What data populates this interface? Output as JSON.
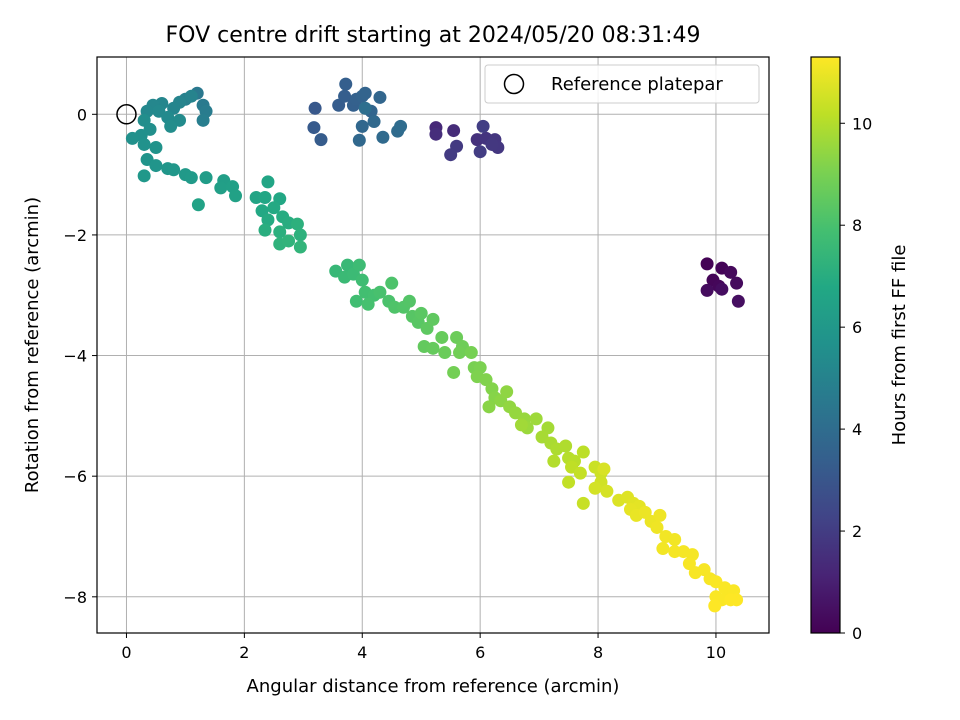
{
  "chart_data": {
    "type": "scatter",
    "title": "FOV centre drift starting at 2024/05/20 08:31:49",
    "xlabel": "Angular distance from reference (arcmin)",
    "ylabel": "Rotation from reference (arcmin)",
    "xlim": [
      -0.5,
      10.9
    ],
    "ylim": [
      -8.6,
      0.95
    ],
    "xticks": [
      0,
      2,
      4,
      6,
      8,
      10
    ],
    "yticks": [
      0,
      -2,
      -4,
      -6,
      -8
    ],
    "grid": true,
    "legend": {
      "placement": "upper right",
      "entries": [
        "Reference platepar"
      ]
    },
    "reference_point": {
      "x": 0,
      "y": 0
    },
    "colorbar": {
      "label": "Hours from first FF file",
      "cmap": "viridis",
      "range": [
        0,
        11.3
      ],
      "ticks": [
        0,
        2,
        4,
        6,
        8,
        10
      ]
    },
    "points": [
      [
        9.85,
        -2.48,
        0.05
      ],
      [
        10.1,
        -2.55,
        0.1
      ],
      [
        9.95,
        -2.75,
        0.15
      ],
      [
        10.05,
        -2.85,
        0.2
      ],
      [
        10.25,
        -2.62,
        0.25
      ],
      [
        10.35,
        -2.8,
        0.3
      ],
      [
        9.85,
        -2.92,
        0.35
      ],
      [
        10.1,
        -2.9,
        0.4
      ],
      [
        10.38,
        -3.1,
        0.45
      ],
      [
        5.25,
        -0.22,
        1.3
      ],
      [
        5.55,
        -0.27,
        1.4
      ],
      [
        5.25,
        -0.33,
        1.5
      ],
      [
        5.95,
        -0.42,
        1.6
      ],
      [
        6.1,
        -0.4,
        1.7
      ],
      [
        6.25,
        -0.42,
        1.75
      ],
      [
        6.3,
        -0.55,
        1.8
      ],
      [
        6.2,
        -0.5,
        1.85
      ],
      [
        5.6,
        -0.53,
        1.9
      ],
      [
        5.5,
        -0.67,
        1.95
      ],
      [
        6.0,
        -0.62,
        2.0
      ],
      [
        6.05,
        -0.2,
        2.05
      ],
      [
        3.2,
        0.1,
        3.1
      ],
      [
        3.18,
        -0.22,
        3.2
      ],
      [
        3.3,
        -0.42,
        3.25
      ],
      [
        3.6,
        0.15,
        3.3
      ],
      [
        3.7,
        0.3,
        3.35
      ],
      [
        3.72,
        0.5,
        3.4
      ],
      [
        3.85,
        0.15,
        3.45
      ],
      [
        3.9,
        0.25,
        3.5
      ],
      [
        4.0,
        0.3,
        3.55
      ],
      [
        4.05,
        0.35,
        3.6
      ],
      [
        4.15,
        0.05,
        3.65
      ],
      [
        4.3,
        0.28,
        3.7
      ],
      [
        4.0,
        -0.2,
        3.75
      ],
      [
        3.95,
        -0.43,
        3.8
      ],
      [
        4.2,
        -0.12,
        3.85
      ],
      [
        4.35,
        -0.38,
        3.9
      ],
      [
        4.6,
        -0.28,
        3.95
      ],
      [
        4.65,
        -0.2,
        4.0
      ],
      [
        4.05,
        0.1,
        4.1
      ],
      [
        1.2,
        0.35,
        4.5
      ],
      [
        1.3,
        0.15,
        4.6
      ],
      [
        1.35,
        0.05,
        4.7
      ],
      [
        1.3,
        -0.1,
        4.8
      ],
      [
        1.0,
        0.25,
        4.9
      ],
      [
        1.1,
        0.3,
        5.0
      ],
      [
        0.9,
        0.2,
        5.05
      ],
      [
        0.8,
        0.1,
        5.1
      ],
      [
        0.6,
        0.18,
        5.15
      ],
      [
        0.45,
        0.15,
        5.2
      ],
      [
        0.35,
        0.05,
        5.25
      ],
      [
        0.55,
        0.05,
        5.3
      ],
      [
        0.7,
        -0.05,
        5.35
      ],
      [
        0.9,
        -0.1,
        5.4
      ],
      [
        0.75,
        -0.2,
        5.45
      ],
      [
        0.3,
        -0.1,
        5.5
      ],
      [
        0.4,
        -0.25,
        5.55
      ],
      [
        0.25,
        -0.35,
        5.6
      ],
      [
        0.1,
        -0.4,
        5.65
      ],
      [
        0.3,
        -0.5,
        5.7
      ],
      [
        0.5,
        -0.55,
        5.75
      ],
      [
        0.35,
        -0.75,
        5.8
      ],
      [
        0.5,
        -0.85,
        5.85
      ],
      [
        0.7,
        -0.9,
        5.9
      ],
      [
        0.8,
        -0.92,
        5.95
      ],
      [
        0.3,
        -1.02,
        6.0
      ],
      [
        1.0,
        -1.0,
        6.05
      ],
      [
        1.1,
        -1.05,
        6.1
      ],
      [
        1.35,
        -1.05,
        6.2
      ],
      [
        1.65,
        -1.1,
        6.3
      ],
      [
        1.6,
        -1.22,
        6.35
      ],
      [
        1.8,
        -1.2,
        6.4
      ],
      [
        1.85,
        -1.35,
        6.45
      ],
      [
        1.22,
        -1.5,
        6.5
      ],
      [
        2.2,
        -1.38,
        6.6
      ],
      [
        2.4,
        -1.12,
        6.65
      ],
      [
        2.35,
        -1.38,
        6.7
      ],
      [
        2.6,
        -1.4,
        6.75
      ],
      [
        2.3,
        -1.6,
        6.8
      ],
      [
        2.5,
        -1.55,
        6.85
      ],
      [
        2.4,
        -1.75,
        6.9
      ],
      [
        2.65,
        -1.7,
        6.95
      ],
      [
        2.75,
        -1.8,
        7.0
      ],
      [
        2.35,
        -1.92,
        7.05
      ],
      [
        2.6,
        -1.95,
        7.1
      ],
      [
        2.9,
        -1.82,
        7.15
      ],
      [
        2.95,
        -2.0,
        7.2
      ],
      [
        2.6,
        -2.15,
        7.25
      ],
      [
        2.75,
        -2.1,
        7.3
      ],
      [
        2.95,
        -2.2,
        7.35
      ],
      [
        3.55,
        -2.6,
        7.5
      ],
      [
        3.75,
        -2.5,
        7.55
      ],
      [
        3.7,
        -2.7,
        7.6
      ],
      [
        3.85,
        -2.65,
        7.65
      ],
      [
        3.95,
        -2.5,
        7.7
      ],
      [
        4.0,
        -2.75,
        7.75
      ],
      [
        3.9,
        -3.1,
        7.8
      ],
      [
        4.05,
        -2.95,
        7.85
      ],
      [
        4.2,
        -3.0,
        7.9
      ],
      [
        4.1,
        -3.15,
        7.95
      ],
      [
        4.3,
        -2.95,
        8.0
      ],
      [
        4.45,
        -3.1,
        8.05
      ],
      [
        4.5,
        -2.8,
        8.1
      ],
      [
        4.55,
        -3.2,
        8.15
      ],
      [
        4.7,
        -3.2,
        8.2
      ],
      [
        4.8,
        -3.1,
        8.25
      ],
      [
        4.85,
        -3.35,
        8.3
      ],
      [
        4.95,
        -3.45,
        8.35
      ],
      [
        5.0,
        -3.3,
        8.4
      ],
      [
        5.1,
        -3.55,
        8.45
      ],
      [
        5.2,
        -3.4,
        8.5
      ],
      [
        5.05,
        -3.85,
        8.55
      ],
      [
        5.2,
        -3.88,
        8.6
      ],
      [
        5.35,
        -3.7,
        8.65
      ],
      [
        5.4,
        -3.95,
        8.7
      ],
      [
        5.6,
        -3.7,
        8.75
      ],
      [
        5.7,
        -3.85,
        8.8
      ],
      [
        5.65,
        -3.95,
        8.85
      ],
      [
        5.55,
        -4.28,
        8.9
      ],
      [
        5.85,
        -3.95,
        8.95
      ],
      [
        5.9,
        -4.2,
        9.0
      ],
      [
        6.0,
        -4.2,
        9.05
      ],
      [
        5.95,
        -4.35,
        9.1
      ],
      [
        6.1,
        -4.4,
        9.15
      ],
      [
        6.2,
        -4.55,
        9.2
      ],
      [
        6.25,
        -4.7,
        9.25
      ],
      [
        6.15,
        -4.85,
        9.3
      ],
      [
        6.35,
        -4.75,
        9.35
      ],
      [
        6.45,
        -4.6,
        9.4
      ],
      [
        6.5,
        -4.85,
        9.45
      ],
      [
        6.6,
        -4.95,
        9.5
      ],
      [
        6.75,
        -5.05,
        9.55
      ],
      [
        6.8,
        -5.2,
        9.6
      ],
      [
        6.95,
        -5.05,
        9.65
      ],
      [
        6.7,
        -5.15,
        9.7
      ],
      [
        7.15,
        -5.2,
        9.75
      ],
      [
        7.05,
        -5.35,
        9.8
      ],
      [
        7.2,
        -5.45,
        9.85
      ],
      [
        7.3,
        -5.55,
        9.9
      ],
      [
        7.45,
        -5.5,
        9.95
      ],
      [
        7.25,
        -5.75,
        10.0
      ],
      [
        7.5,
        -5.7,
        10.05
      ],
      [
        7.6,
        -5.75,
        10.1
      ],
      [
        7.75,
        -5.6,
        10.15
      ],
      [
        7.55,
        -5.85,
        10.2
      ],
      [
        7.5,
        -6.1,
        10.25
      ],
      [
        7.7,
        -5.95,
        10.3
      ],
      [
        7.75,
        -6.45,
        10.35
      ],
      [
        7.95,
        -5.85,
        10.4
      ],
      [
        8.05,
        -5.95,
        10.45
      ],
      [
        8.05,
        -6.1,
        10.5
      ],
      [
        7.95,
        -6.2,
        10.55
      ],
      [
        8.15,
        -6.25,
        10.6
      ],
      [
        8.1,
        -5.88,
        10.65
      ],
      [
        8.35,
        -6.4,
        10.7
      ],
      [
        8.5,
        -6.35,
        10.75
      ],
      [
        8.6,
        -6.45,
        10.8
      ],
      [
        8.7,
        -6.5,
        10.85
      ],
      [
        8.55,
        -6.55,
        10.9
      ],
      [
        8.65,
        -6.65,
        10.95
      ],
      [
        8.8,
        -6.6,
        11.0
      ],
      [
        8.9,
        -6.75,
        11.0
      ],
      [
        9.05,
        -6.65,
        11.05
      ],
      [
        9.0,
        -6.85,
        11.05
      ],
      [
        9.15,
        -7.0,
        11.1
      ],
      [
        9.3,
        -7.05,
        11.1
      ],
      [
        9.1,
        -7.2,
        11.1
      ],
      [
        9.3,
        -7.25,
        11.15
      ],
      [
        9.45,
        -7.25,
        11.15
      ],
      [
        9.6,
        -7.3,
        11.15
      ],
      [
        9.55,
        -7.45,
        11.2
      ],
      [
        9.65,
        -7.6,
        11.2
      ],
      [
        9.8,
        -7.55,
        11.2
      ],
      [
        9.9,
        -7.7,
        11.2
      ],
      [
        10.0,
        -7.75,
        11.25
      ],
      [
        10.15,
        -7.85,
        11.25
      ],
      [
        10.25,
        -7.95,
        11.25
      ],
      [
        10.3,
        -7.9,
        11.25
      ],
      [
        10.0,
        -8.0,
        11.25
      ],
      [
        10.1,
        -8.05,
        11.25
      ],
      [
        10.35,
        -8.05,
        11.3
      ],
      [
        9.98,
        -8.15,
        11.3
      ],
      [
        10.25,
        -8.05,
        11.3
      ]
    ]
  }
}
